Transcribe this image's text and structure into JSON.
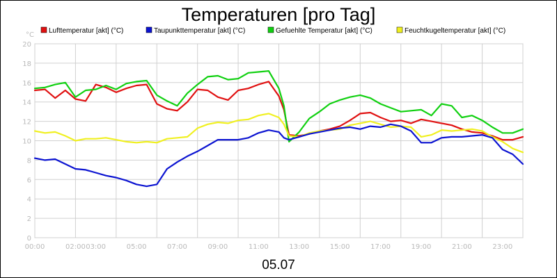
{
  "chart_data": {
    "type": "line",
    "title": "Temperaturen [pro Tag]",
    "y_unit": "°C",
    "xlabel": "05.07",
    "ylim": [
      0,
      20
    ],
    "y_ticks": [
      0,
      2,
      4,
      6,
      8,
      10,
      12,
      14,
      16,
      18,
      20
    ],
    "x_ticks": [
      "00:00",
      "02:00",
      "03:00",
      "05:00",
      "07:00",
      "09:00",
      "11:00",
      "13:00",
      "15:00",
      "17:00",
      "19:00",
      "21:00",
      "23:00"
    ],
    "x_tick_hours": [
      0,
      2,
      3,
      5,
      7,
      9,
      11,
      13,
      15,
      17,
      19,
      21,
      23
    ],
    "grid": true,
    "legend_position": "top",
    "x": [
      0,
      0.5,
      1,
      1.5,
      2,
      2.5,
      3,
      3.5,
      4,
      4.5,
      5,
      5.5,
      6,
      6.5,
      7,
      7.5,
      8,
      8.5,
      9,
      9.5,
      10,
      10.5,
      11,
      11.5,
      12,
      12.25,
      12.5,
      13,
      13.5,
      14,
      14.5,
      15,
      15.5,
      16,
      16.5,
      17,
      17.5,
      18,
      18.5,
      19,
      19.5,
      20,
      20.5,
      21,
      21.5,
      22,
      22.5,
      23,
      23.5,
      24
    ],
    "series": [
      {
        "name": "Lufttemperatur [akt] (°C)",
        "color": "#e01010",
        "values": [
          15.2,
          15.3,
          14.4,
          15.2,
          14.3,
          14.1,
          15.8,
          15.5,
          15.0,
          15.4,
          15.7,
          15.8,
          13.8,
          13.3,
          13.1,
          14.0,
          15.3,
          15.2,
          14.5,
          14.2,
          15.2,
          15.4,
          15.8,
          16.1,
          14.6,
          13.2,
          10.6,
          10.5,
          10.7,
          11.0,
          11.2,
          11.5,
          12.1,
          12.8,
          12.9,
          12.4,
          12.0,
          12.1,
          11.8,
          12.2,
          12.0,
          11.8,
          11.6,
          11.2,
          10.9,
          10.8,
          10.5,
          10.1,
          10.1,
          10.4
        ]
      },
      {
        "name": "Taupunkttemperatur [akt] (°C)",
        "color": "#0b13d1",
        "values": [
          8.2,
          8.0,
          8.1,
          7.6,
          7.1,
          7.0,
          6.7,
          6.4,
          6.2,
          5.9,
          5.5,
          5.3,
          5.5,
          7.1,
          7.8,
          8.4,
          8.9,
          9.5,
          10.1,
          10.1,
          10.1,
          10.3,
          10.8,
          11.1,
          10.9,
          10.3,
          10.1,
          10.4,
          10.7,
          10.9,
          11.1,
          11.3,
          11.4,
          11.2,
          11.5,
          11.4,
          11.7,
          11.5,
          11.0,
          9.8,
          9.8,
          10.3,
          10.4,
          10.4,
          10.5,
          10.6,
          10.3,
          9.1,
          8.6,
          7.6
        ]
      },
      {
        "name": "Gefuehlte Temperatur [akt] (°C)",
        "color": "#10d010",
        "values": [
          15.4,
          15.5,
          15.8,
          16.0,
          14.5,
          15.2,
          15.3,
          15.7,
          15.3,
          15.9,
          16.1,
          16.2,
          14.7,
          14.1,
          13.6,
          14.9,
          15.8,
          16.6,
          16.7,
          16.3,
          16.4,
          17.0,
          17.1,
          17.2,
          15.4,
          13.6,
          9.9,
          10.9,
          12.3,
          13.0,
          13.8,
          14.2,
          14.5,
          14.7,
          14.4,
          13.8,
          13.4,
          13.0,
          13.1,
          13.2,
          12.6,
          13.8,
          13.6,
          12.4,
          12.6,
          12.1,
          11.4,
          10.8,
          10.8,
          11.2
        ]
      },
      {
        "name": "Feuchtkugeltemperatur [akt] (°C)",
        "color": "#f0f020",
        "values": [
          11.0,
          10.8,
          10.9,
          10.5,
          10.0,
          10.2,
          10.2,
          10.3,
          10.1,
          9.9,
          9.8,
          9.9,
          9.8,
          10.2,
          10.3,
          10.4,
          11.3,
          11.7,
          11.9,
          11.8,
          12.1,
          12.2,
          12.6,
          12.8,
          12.4,
          11.7,
          10.5,
          10.4,
          10.8,
          11.0,
          11.1,
          11.2,
          11.6,
          11.8,
          12.0,
          11.7,
          11.4,
          11.5,
          11.4,
          10.4,
          10.6,
          11.1,
          11.0,
          11.1,
          11.2,
          11.0,
          10.4,
          9.9,
          9.2,
          8.8
        ]
      }
    ]
  }
}
